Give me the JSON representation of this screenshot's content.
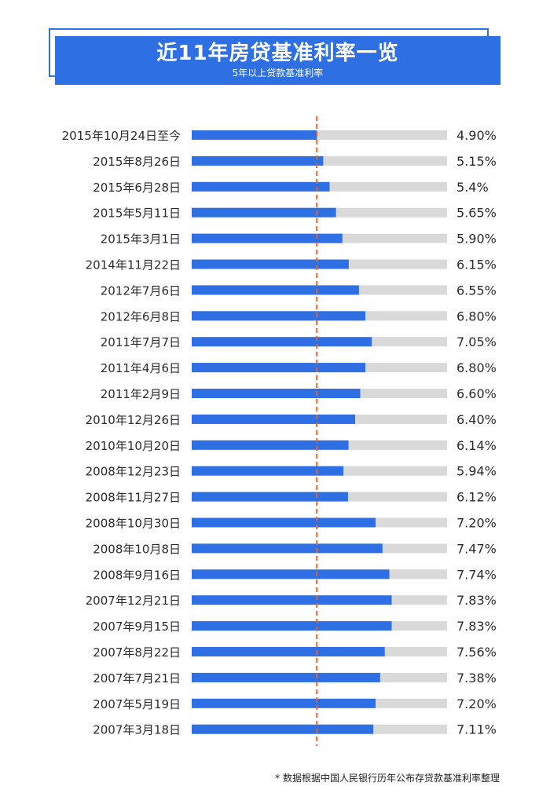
{
  "header": {
    "title": "近11年房贷基准利率一览",
    "subtitle": "5年以上贷款基准利率"
  },
  "footnote": "* 数据根据中国人民银行历年公布存贷款基准利率整理",
  "colors": {
    "bar": "#2f6fe4",
    "track": "#d9d9d9",
    "refline": "#e0662a",
    "label": "#2b2b2b"
  },
  "chart_data": {
    "type": "bar",
    "orientation": "horizontal",
    "title": "近11年房贷基准利率一览",
    "subtitle": "5年以上贷款基准利率",
    "xlim": [
      0,
      10
    ],
    "reference_line": 4.9,
    "categories": [
      "2015年10月24日至今",
      "2015年8月26日",
      "2015年6月28日",
      "2015年5月11日",
      "2015年3月1日",
      "2014年11月22日",
      "2012年7月6日",
      "2012年6月8日",
      "2011年7月7日",
      "2011年4月6日",
      "2011年2月9日",
      "2010年12月26日",
      "2010年10月20日",
      "2008年12月23日",
      "2008年11月27日",
      "2008年10月30日",
      "2008年10月8日",
      "2008年9月16日",
      "2007年12月21日",
      "2007年9月15日",
      "2007年8月22日",
      "2007年7月21日",
      "2007年5月19日",
      "2007年3月18日"
    ],
    "values": [
      4.9,
      5.15,
      5.4,
      5.65,
      5.9,
      6.15,
      6.55,
      6.8,
      7.05,
      6.8,
      6.6,
      6.4,
      6.14,
      5.94,
      6.12,
      7.2,
      7.47,
      7.74,
      7.83,
      7.83,
      7.56,
      7.38,
      7.2,
      7.11
    ],
    "value_labels": [
      "4.90%",
      "5.15%",
      "5.4%",
      "5.65%",
      "5.90%",
      "6.15%",
      "6.55%",
      "6.80%",
      "7.05%",
      "6.80%",
      "6.60%",
      "6.40%",
      "6.14%",
      "5.94%",
      "6.12%",
      "7.20%",
      "7.47%",
      "7.74%",
      "7.83%",
      "7.83%",
      "7.56%",
      "7.38%",
      "7.20%",
      "7.11%"
    ]
  }
}
